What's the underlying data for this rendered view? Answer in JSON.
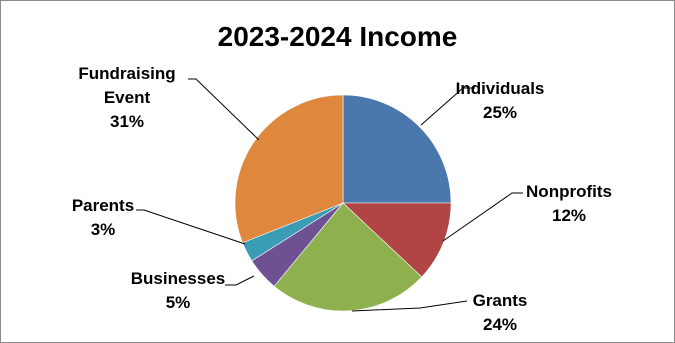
{
  "chart_data": {
    "type": "pie",
    "title": "2023-2024 Income",
    "slices": [
      {
        "name": "Individuals",
        "label_lines": [
          "Individuals"
        ],
        "percent_label": "25%",
        "value": 25,
        "color": "#4a78ac"
      },
      {
        "name": "Nonprofits",
        "label_lines": [
          "Nonprofits"
        ],
        "percent_label": "12%",
        "value": 12,
        "color": "#b04544"
      },
      {
        "name": "Grants",
        "label_lines": [
          "Grants"
        ],
        "percent_label": "24%",
        "value": 24,
        "color": "#8fb04e"
      },
      {
        "name": "Businesses",
        "label_lines": [
          "Businesses"
        ],
        "percent_label": "5%",
        "value": 5,
        "color": "#6d5192"
      },
      {
        "name": "Parents",
        "label_lines": [
          "Parents"
        ],
        "percent_label": "3%",
        "value": 3,
        "color": "#3a9cb5"
      },
      {
        "name": "Fundraising Event",
        "label_lines": [
          "Fundraising",
          "Event"
        ],
        "percent_label": "31%",
        "value": 31,
        "color": "#df873c"
      }
    ]
  }
}
